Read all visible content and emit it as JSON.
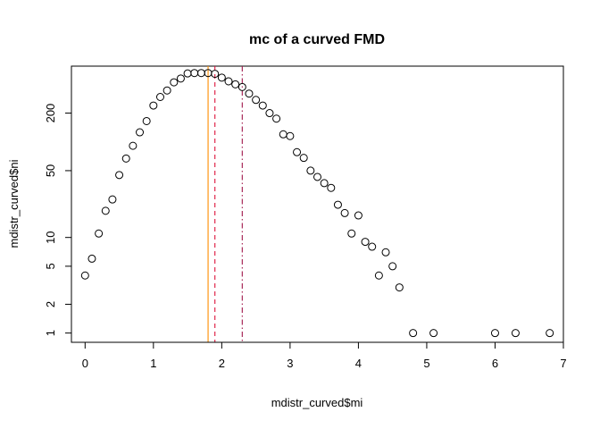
{
  "chart_data": {
    "type": "scatter",
    "title": "mc of a curved FMD",
    "xlabel": "mdistr_curved$mi",
    "ylabel": "mdistr_curved$ni",
    "xlim": [
      -0.2,
      7.0
    ],
    "ylim": [
      0.8,
      620
    ],
    "y_scale": "log",
    "x_ticks": [
      0,
      1,
      2,
      3,
      4,
      5,
      6,
      7
    ],
    "x_tick_labels": [
      "0",
      "1",
      "2",
      "3",
      "4",
      "5",
      "6",
      "7"
    ],
    "y_ticks": [
      1,
      2,
      5,
      10,
      50,
      200
    ],
    "y_tick_labels": [
      "1",
      "2",
      "5",
      "10",
      "50",
      "200"
    ],
    "grid": false,
    "legend": null,
    "points": {
      "x": [
        0.0,
        0.1,
        0.2,
        0.3,
        0.4,
        0.5,
        0.6,
        0.7,
        0.8,
        0.9,
        1.0,
        1.1,
        1.2,
        1.3,
        1.4,
        1.5,
        1.6,
        1.7,
        1.8,
        1.9,
        2.0,
        2.1,
        2.2,
        2.3,
        2.4,
        2.5,
        2.6,
        2.7,
        2.8,
        2.9,
        3.0,
        3.1,
        3.2,
        3.3,
        3.4,
        3.5,
        3.6,
        3.7,
        3.8,
        3.9,
        4.0,
        4.1,
        4.2,
        4.3,
        4.4,
        4.5,
        4.6,
        4.8,
        5.1,
        6.0,
        6.3,
        6.8
      ],
      "y": [
        4,
        6,
        11,
        19,
        25,
        45,
        67,
        91,
        126,
        165,
        240,
        295,
        345,
        420,
        460,
        520,
        525,
        525,
        525,
        515,
        470,
        430,
        400,
        375,
        320,
        275,
        240,
        200,
        175,
        120,
        115,
        78,
        68,
        50,
        43,
        37,
        33,
        22,
        18,
        11,
        17,
        9,
        8,
        4,
        7,
        5,
        3,
        1,
        1,
        1,
        1,
        1
      ],
      "color": "#000000",
      "marker": "open-circle"
    },
    "vlines": [
      {
        "x": 1.8,
        "color": "#ff8c00",
        "style": "solid"
      },
      {
        "x": 1.9,
        "color": "#dc143c",
        "style": "dashed"
      },
      {
        "x": 2.3,
        "color": "#a0164a",
        "style": "dashdot"
      }
    ]
  }
}
